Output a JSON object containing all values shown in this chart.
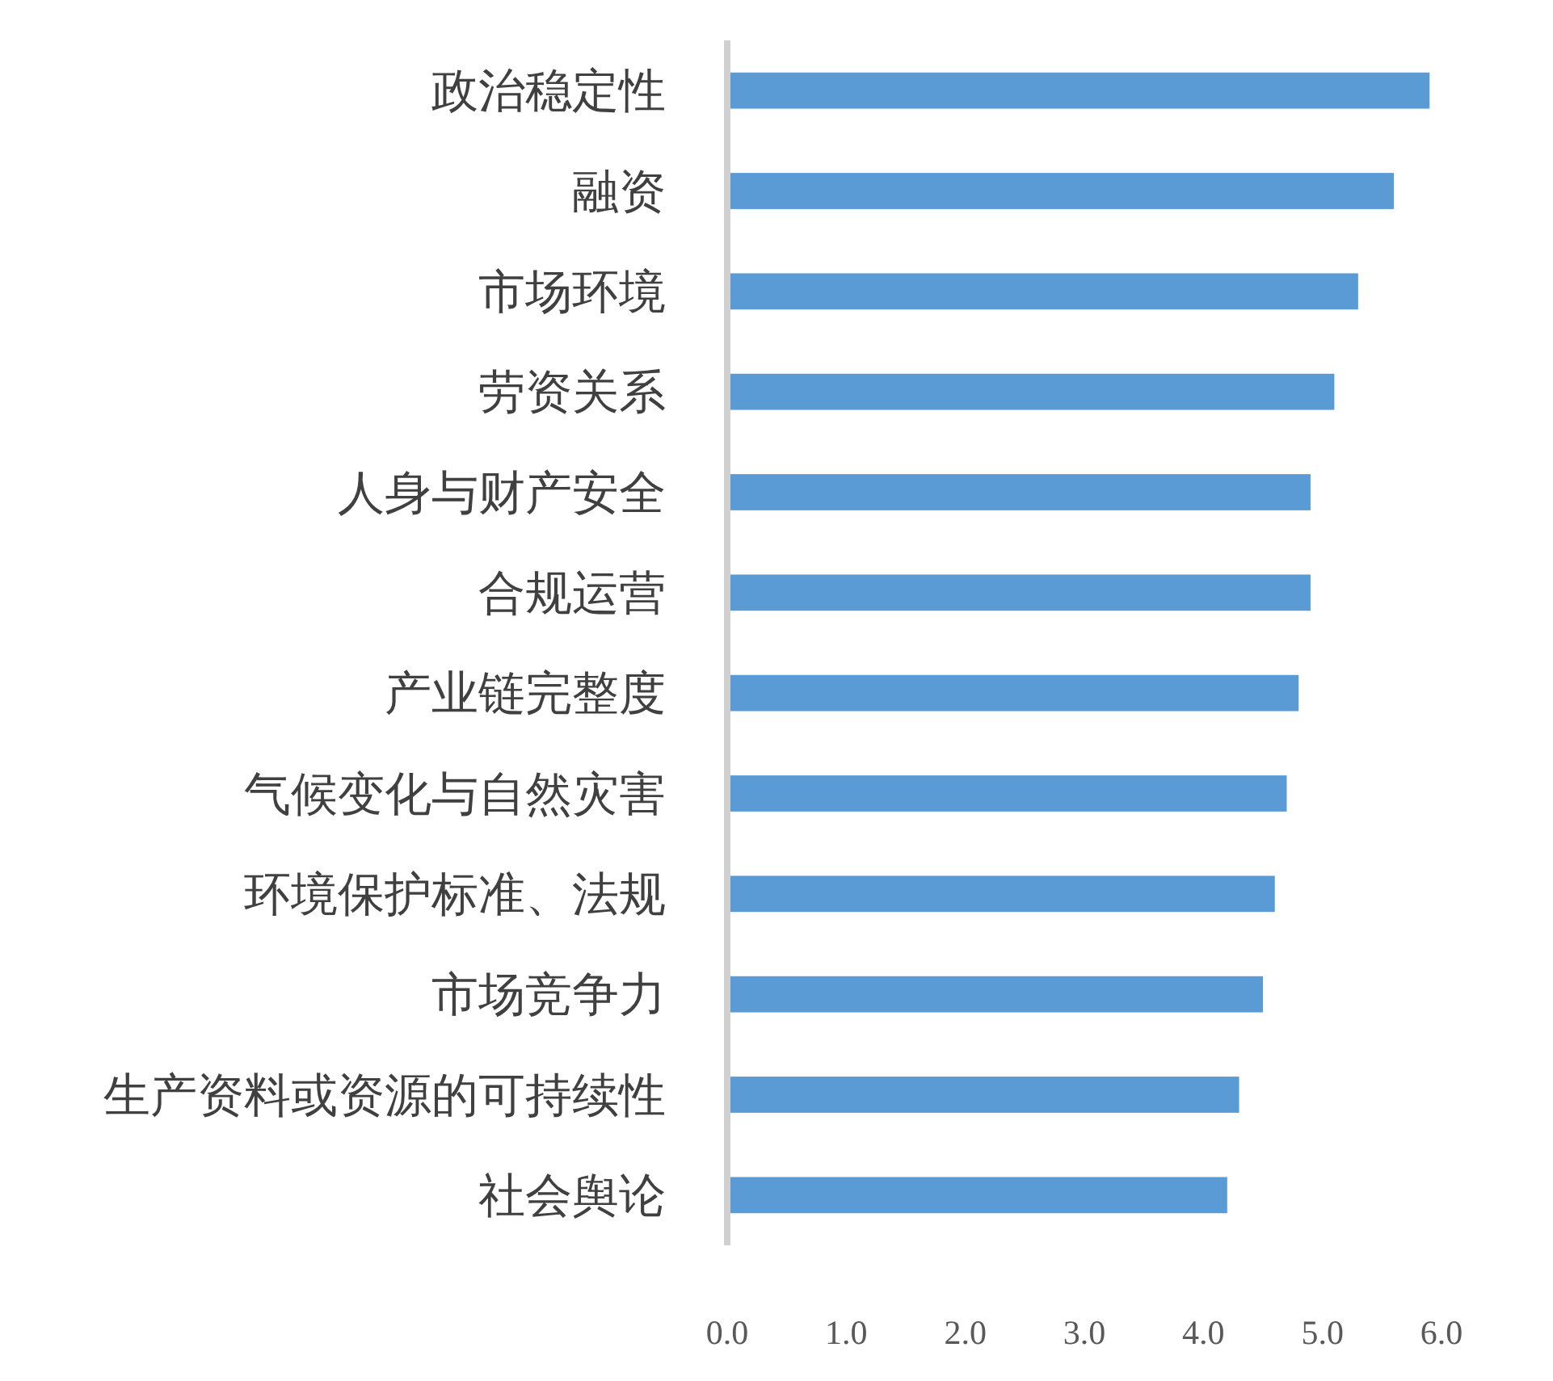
{
  "chart_data": {
    "type": "bar",
    "orientation": "horizontal",
    "categories": [
      "政治稳定性",
      "融资",
      "市场环境",
      "劳资关系",
      "人身与财产安全",
      "合规运营",
      "产业链完整度",
      "气候变化与自然灾害",
      "环境保护标准、法规",
      "市场竞争力",
      "生产资料或资源的可持续性",
      "社会舆论"
    ],
    "values": [
      5.9,
      5.6,
      5.3,
      5.1,
      4.9,
      4.9,
      4.8,
      4.7,
      4.6,
      4.5,
      4.3,
      4.2
    ],
    "color": "#5b9bd5",
    "xlim": [
      0,
      6
    ],
    "xticks": [
      {
        "value": 0,
        "label": "0.0"
      },
      {
        "value": 1,
        "label": "1.0"
      },
      {
        "value": 2,
        "label": "2.0"
      },
      {
        "value": 3,
        "label": "3.0"
      },
      {
        "value": 4,
        "label": "4.0"
      },
      {
        "value": 5,
        "label": "5.0"
      },
      {
        "value": 6,
        "label": "6.0"
      }
    ]
  }
}
